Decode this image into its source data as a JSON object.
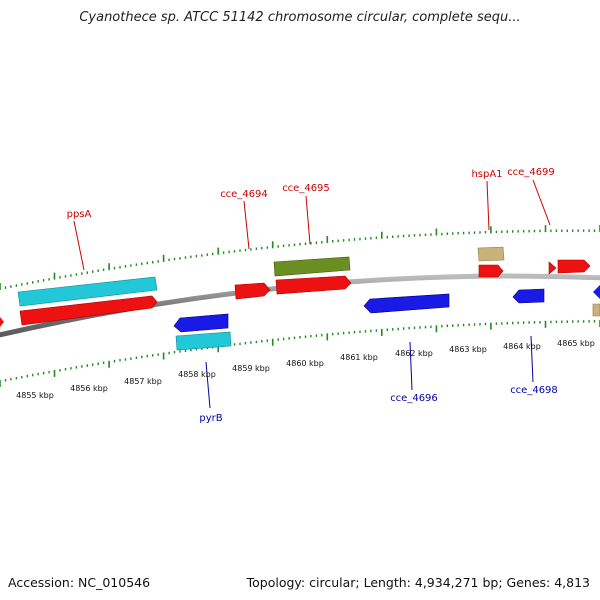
{
  "title": "Cyanothece sp. ATCC 51142 chromosome circular, complete sequ...",
  "footer": {
    "accession": "Accession: NC_010546",
    "summary": "Topology: circular; Length: 4,934,271 bp; Genes: 4,813"
  },
  "scale_labels": [
    "4855 kbp",
    "4856 kbp",
    "4857 kbp",
    "4858 kbp",
    "4859 kbp",
    "4860 kbp",
    "4861 kbp",
    "4862 kbp",
    "4863 kbp",
    "4864 kbp",
    "4865 kbp"
  ],
  "gene_labels": {
    "ppsA": "ppsA",
    "cce_4694": "cce_4694",
    "cce_4695": "cce_4695",
    "hspA1": "hspA1",
    "cce_4699": "cce_4699",
    "pyrB": "pyrB",
    "cce_4696": "cce_4696",
    "cce_4698": "cce_4698"
  },
  "colors": {
    "forward_cds": "#ee1111",
    "reverse_cds": "#1a1ae6",
    "cyan_feature": "#22c8d8",
    "olive_feature": "#6b8e23",
    "tan_feature": "#c8b27a",
    "tick_green": "#228b22",
    "backbone": "#888888",
    "label_red": "#cc0000",
    "label_blue": "#0000aa"
  }
}
